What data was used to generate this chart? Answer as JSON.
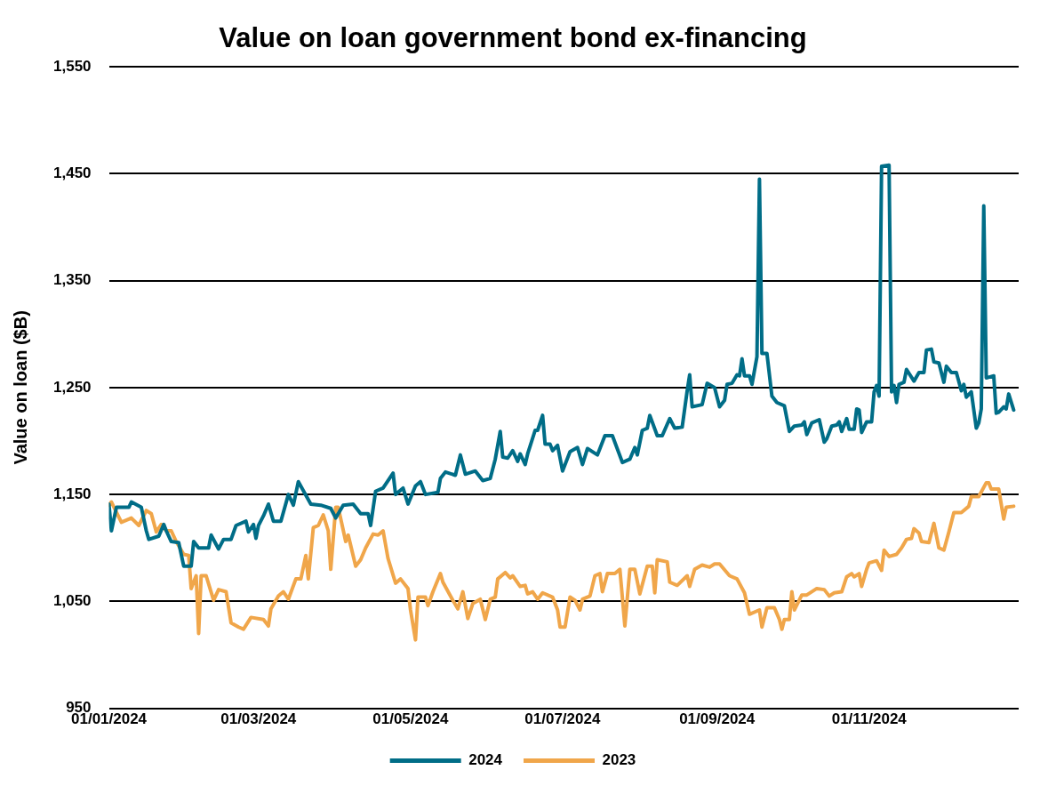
{
  "chart_data": {
    "type": "line",
    "title": "Value on loan government bond ex-financing",
    "ylabel": "Value on loan ($B)",
    "xlim": [
      "2024-01-01",
      "2024-12-31"
    ],
    "xticks": [
      {
        "value": "2024-01-01",
        "label": "01/01/2024"
      },
      {
        "value": "2024-03-01",
        "label": "01/03/2024"
      },
      {
        "value": "2024-05-01",
        "label": "01/05/2024"
      },
      {
        "value": "2024-07-01",
        "label": "01/07/2024"
      },
      {
        "value": "2024-09-01",
        "label": "01/09/2024"
      },
      {
        "value": "2024-11-01",
        "label": "01/11/2024"
      }
    ],
    "ylim": [
      950,
      1550
    ],
    "yticks": [
      {
        "value": 950,
        "label": "950"
      },
      {
        "value": 1050,
        "label": "1,050"
      },
      {
        "value": 1150,
        "label": "1,150"
      },
      {
        "value": 1250,
        "label": "1,250"
      },
      {
        "value": 1350,
        "label": "1,350"
      },
      {
        "value": 1450,
        "label": "1,450"
      },
      {
        "value": 1550,
        "label": "1,550"
      }
    ],
    "grid": "y",
    "legend": "bottom",
    "marker": "none",
    "line_style": "solid",
    "series": [
      {
        "name": "2024",
        "color": "#006d87",
        "x": [
          "2024-01-01",
          "2024-01-02",
          "2024-01-04",
          "2024-01-09",
          "2024-01-10",
          "2024-01-14",
          "2024-01-16",
          "2024-01-17",
          "2024-01-21",
          "2024-01-23",
          "2024-01-24",
          "2024-01-26",
          "2024-01-29",
          "2024-01-31",
          "2024-02-03",
          "2024-02-04",
          "2024-02-06",
          "2024-02-10",
          "2024-02-11",
          "2024-02-14",
          "2024-02-16",
          "2024-02-19",
          "2024-02-21",
          "2024-02-25",
          "2024-02-26",
          "2024-02-28",
          "2024-02-29",
          "2024-03-01",
          "2024-03-03",
          "2024-03-05",
          "2024-03-07",
          "2024-03-10",
          "2024-03-13",
          "2024-03-15",
          "2024-03-17",
          "2024-03-22",
          "2024-03-26",
          "2024-03-30",
          "2024-04-01",
          "2024-04-04",
          "2024-04-08",
          "2024-04-11",
          "2024-04-14",
          "2024-04-15",
          "2024-04-17",
          "2024-04-20",
          "2024-04-24",
          "2024-04-25",
          "2024-04-28",
          "2024-04-30",
          "2024-05-03",
          "2024-05-05",
          "2024-05-07",
          "2024-05-12",
          "2024-05-13",
          "2024-05-15",
          "2024-05-19",
          "2024-05-21",
          "2024-05-23",
          "2024-05-27",
          "2024-05-30",
          "2024-06-02",
          "2024-06-04",
          "2024-06-06",
          "2024-06-07",
          "2024-06-09",
          "2024-06-11",
          "2024-06-13",
          "2024-06-14",
          "2024-06-16",
          "2024-06-17",
          "2024-06-20",
          "2024-06-21",
          "2024-06-23",
          "2024-06-24",
          "2024-06-26",
          "2024-06-27",
          "2024-06-29",
          "2024-07-01",
          "2024-07-04",
          "2024-07-07",
          "2024-07-09",
          "2024-07-11",
          "2024-07-15",
          "2024-07-18",
          "2024-07-21",
          "2024-07-25",
          "2024-07-28",
          "2024-07-30",
          "2024-07-31",
          "2024-08-02",
          "2024-08-04",
          "2024-08-05",
          "2024-08-08",
          "2024-08-10",
          "2024-08-13",
          "2024-08-15",
          "2024-08-18",
          "2024-08-20",
          "2024-08-21",
          "2024-08-22",
          "2024-08-26",
          "2024-08-28",
          "2024-08-31",
          "2024-09-02",
          "2024-09-04",
          "2024-09-05",
          "2024-09-07",
          "2024-09-09",
          "2024-09-10",
          "2024-09-11",
          "2024-09-12",
          "2024-09-14",
          "2024-09-15",
          "2024-09-17",
          "2024-09-18",
          "2024-09-19",
          "2024-09-21",
          "2024-09-23",
          "2024-09-25",
          "2024-09-28",
          "2024-09-30",
          "2024-10-02",
          "2024-10-05",
          "2024-10-06",
          "2024-10-07",
          "2024-10-09",
          "2024-10-12",
          "2024-10-14",
          "2024-10-15",
          "2024-10-17",
          "2024-10-19",
          "2024-10-20",
          "2024-10-21",
          "2024-10-23",
          "2024-10-24",
          "2024-10-26",
          "2024-10-27",
          "2024-10-28",
          "2024-10-29",
          "2024-10-31",
          "2024-11-02",
          "2024-11-03",
          "2024-11-04",
          "2024-11-05",
          "2024-11-06",
          "2024-11-09",
          "2024-11-10",
          "2024-11-11",
          "2024-11-12",
          "2024-11-13",
          "2024-11-15",
          "2024-11-16",
          "2024-11-19",
          "2024-11-21",
          "2024-11-23",
          "2024-11-24",
          "2024-11-26",
          "2024-11-27",
          "2024-11-29",
          "2024-12-01",
          "2024-12-02",
          "2024-12-04",
          "2024-12-06",
          "2024-12-08",
          "2024-12-09",
          "2024-12-10",
          "2024-12-12",
          "2024-12-14",
          "2024-12-15",
          "2024-12-16",
          "2024-12-17",
          "2024-12-18",
          "2024-12-21",
          "2024-12-22",
          "2024-12-23",
          "2024-12-25",
          "2024-12-26",
          "2024-12-27",
          "2024-12-29"
        ],
        "values": [
          1141,
          1116,
          1138,
          1138,
          1143,
          1138,
          1116,
          1108,
          1111,
          1122,
          1116,
          1106,
          1105,
          1083,
          1083,
          1106,
          1100,
          1100,
          1112,
          1099,
          1108,
          1108,
          1121,
          1125,
          1115,
          1122,
          1109,
          1121,
          1130,
          1141,
          1125,
          1125,
          1150,
          1140,
          1162,
          1141,
          1140,
          1137,
          1128,
          1140,
          1141,
          1132,
          1132,
          1121,
          1153,
          1156,
          1170,
          1150,
          1156,
          1141,
          1158,
          1162,
          1150,
          1152,
          1165,
          1171,
          1168,
          1187,
          1169,
          1172,
          1163,
          1165,
          1183,
          1209,
          1185,
          1184,
          1191,
          1181,
          1188,
          1178,
          1188,
          1210,
          1210,
          1224,
          1197,
          1197,
          1191,
          1196,
          1172,
          1190,
          1194,
          1178,
          1193,
          1187,
          1205,
          1205,
          1180,
          1183,
          1194,
          1187,
          1210,
          1212,
          1224,
          1205,
          1205,
          1221,
          1212,
          1213,
          1247,
          1262,
          1232,
          1234,
          1254,
          1250,
          1232,
          1238,
          1253,
          1254,
          1262,
          1261,
          1277,
          1261,
          1261,
          1253,
          1279,
          1445,
          1282,
          1282,
          1242,
          1236,
          1233,
          1209,
          1214,
          1215,
          1218,
          1206,
          1217,
          1220,
          1199,
          1202,
          1214,
          1215,
          1218,
          1209,
          1221,
          1211,
          1211,
          1230,
          1229,
          1208,
          1218,
          1218,
          1246,
          1252,
          1242,
          1457,
          1458,
          1246,
          1252,
          1236,
          1253,
          1255,
          1267,
          1256,
          1264,
          1264,
          1285,
          1286,
          1274,
          1273,
          1255,
          1270,
          1264,
          1264,
          1247,
          1253,
          1241,
          1246,
          1212,
          1217,
          1230,
          1420,
          1259,
          1261,
          1226,
          1227,
          1232,
          1230,
          1244,
          1229
        ]
      },
      {
        "name": "2023",
        "color": "#f0a64a",
        "x": [
          "2024-01-01",
          "2024-01-02",
          "2024-01-06",
          "2024-01-10",
          "2024-01-13",
          "2024-01-16",
          "2024-01-18",
          "2024-01-20",
          "2024-01-22",
          "2024-01-24",
          "2024-01-26",
          "2024-01-28",
          "2024-01-31",
          "2024-02-02",
          "2024-02-03",
          "2024-02-05",
          "2024-02-06",
          "2024-02-07",
          "2024-02-09",
          "2024-02-12",
          "2024-02-14",
          "2024-02-17",
          "2024-02-19",
          "2024-02-22",
          "2024-02-24",
          "2024-02-27",
          "2024-03-03",
          "2024-03-05",
          "2024-03-06",
          "2024-03-09",
          "2024-03-11",
          "2024-03-13",
          "2024-03-16",
          "2024-03-18",
          "2024-03-20",
          "2024-03-21",
          "2024-03-23",
          "2024-03-25",
          "2024-03-27",
          "2024-03-29",
          "2024-03-30",
          "2024-04-01",
          "2024-04-02",
          "2024-04-05",
          "2024-04-06",
          "2024-04-09",
          "2024-04-11",
          "2024-04-13",
          "2024-04-16",
          "2024-04-18",
          "2024-04-20",
          "2024-04-22",
          "2024-04-25",
          "2024-04-27",
          "2024-04-30",
          "2024-05-01",
          "2024-05-03",
          "2024-05-04",
          "2024-05-07",
          "2024-05-08",
          "2024-05-10",
          "2024-05-13",
          "2024-05-14",
          "2024-05-18",
          "2024-05-20",
          "2024-05-22",
          "2024-05-24",
          "2024-05-26",
          "2024-05-29",
          "2024-05-31",
          "2024-06-02",
          "2024-06-04",
          "2024-06-05",
          "2024-06-08",
          "2024-06-10",
          "2024-06-11",
          "2024-06-14",
          "2024-06-16",
          "2024-06-17",
          "2024-06-19",
          "2024-06-21",
          "2024-06-23",
          "2024-06-27",
          "2024-06-29",
          "2024-06-30",
          "2024-07-02",
          "2024-07-04",
          "2024-07-06",
          "2024-07-08",
          "2024-07-09",
          "2024-07-12",
          "2024-07-14",
          "2024-07-16",
          "2024-07-17",
          "2024-07-19",
          "2024-07-22",
          "2024-07-24",
          "2024-07-26",
          "2024-07-28",
          "2024-07-30",
          "2024-08-01",
          "2024-08-04",
          "2024-08-06",
          "2024-08-07",
          "2024-08-08",
          "2024-08-12",
          "2024-08-13",
          "2024-08-16",
          "2024-08-20",
          "2024-08-21",
          "2024-08-23",
          "2024-08-26",
          "2024-08-29",
          "2024-08-31",
          "2024-09-02",
          "2024-09-06",
          "2024-09-09",
          "2024-09-12",
          "2024-09-14",
          "2024-09-18",
          "2024-09-19",
          "2024-09-21",
          "2024-09-24",
          "2024-09-26",
          "2024-09-27",
          "2024-09-28",
          "2024-09-30",
          "2024-10-01",
          "2024-10-02",
          "2024-10-05",
          "2024-10-07",
          "2024-10-11",
          "2024-10-14",
          "2024-10-16",
          "2024-10-18",
          "2024-10-21",
          "2024-10-23",
          "2024-10-25",
          "2024-10-26",
          "2024-10-28",
          "2024-10-29",
          "2024-10-31",
          "2024-11-01",
          "2024-11-04",
          "2024-11-06",
          "2024-11-07",
          "2024-11-09",
          "2024-11-12",
          "2024-11-14",
          "2024-11-16",
          "2024-11-18",
          "2024-11-19",
          "2024-11-21",
          "2024-11-22",
          "2024-11-25",
          "2024-11-27",
          "2024-11-29",
          "2024-12-01",
          "2024-12-03",
          "2024-12-05",
          "2024-12-08",
          "2024-12-11",
          "2024-12-12",
          "2024-12-15",
          "2024-12-18",
          "2024-12-19",
          "2024-12-20",
          "2024-12-23",
          "2024-12-25",
          "2024-12-26",
          "2024-12-29"
        ],
        "values": [
          1140,
          1143,
          1124,
          1128,
          1121,
          1135,
          1132,
          1115,
          1122,
          1116,
          1116,
          1106,
          1094,
          1093,
          1062,
          1074,
          1020,
          1074,
          1074,
          1051,
          1061,
          1059,
          1030,
          1026,
          1024,
          1035,
          1033,
          1027,
          1043,
          1055,
          1059,
          1052,
          1071,
          1071,
          1093,
          1071,
          1119,
          1121,
          1131,
          1116,
          1080,
          1138,
          1138,
          1106,
          1112,
          1083,
          1089,
          1100,
          1113,
          1112,
          1116,
          1090,
          1067,
          1071,
          1062,
          1042,
          1014,
          1054,
          1054,
          1046,
          1059,
          1076,
          1068,
          1051,
          1043,
          1059,
          1034,
          1048,
          1052,
          1033,
          1052,
          1054,
          1071,
          1077,
          1072,
          1074,
          1064,
          1065,
          1057,
          1059,
          1052,
          1058,
          1054,
          1042,
          1026,
          1026,
          1054,
          1051,
          1042,
          1052,
          1055,
          1074,
          1076,
          1059,
          1076,
          1076,
          1080,
          1027,
          1080,
          1080,
          1057,
          1083,
          1083,
          1058,
          1089,
          1087,
          1068,
          1065,
          1074,
          1064,
          1080,
          1084,
          1082,
          1085,
          1085,
          1074,
          1071,
          1058,
          1038,
          1042,
          1026,
          1044,
          1044,
          1033,
          1024,
          1033,
          1033,
          1059,
          1042,
          1056,
          1056,
          1062,
          1061,
          1055,
          1058,
          1059,
          1073,
          1076,
          1073,
          1076,
          1064,
          1080,
          1086,
          1088,
          1079,
          1098,
          1092,
          1094,
          1100,
          1108,
          1109,
          1118,
          1114,
          1106,
          1105,
          1123,
          1100,
          1098,
          1115,
          1133,
          1133,
          1139,
          1148,
          1148,
          1161,
          1161,
          1155,
          1155,
          1127,
          1138,
          1139
        ]
      }
    ]
  }
}
